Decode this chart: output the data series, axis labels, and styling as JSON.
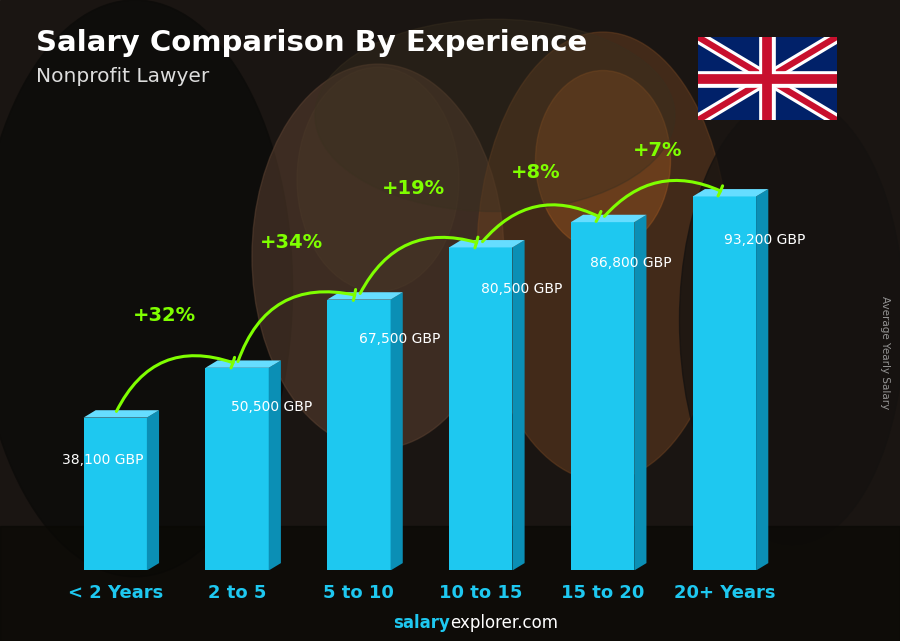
{
  "title": "Salary Comparison By Experience",
  "subtitle": "Nonprofit Lawyer",
  "categories": [
    "< 2 Years",
    "2 to 5",
    "5 to 10",
    "10 to 15",
    "15 to 20",
    "20+ Years"
  ],
  "values": [
    38100,
    50500,
    67500,
    80500,
    86800,
    93200
  ],
  "labels": [
    "38,100 GBP",
    "50,500 GBP",
    "67,500 GBP",
    "80,500 GBP",
    "86,800 GBP",
    "93,200 GBP"
  ],
  "pct_changes": [
    null,
    "+32%",
    "+34%",
    "+19%",
    "+8%",
    "+7%"
  ],
  "bar_color_face": "#1EC8F0",
  "bar_color_top": "#66DDFF",
  "bar_color_side": "#0B8FB5",
  "bg_color": "#2a2520",
  "title_color": "#FFFFFF",
  "subtitle_color": "#CCCCCC",
  "label_color": "#FFFFFF",
  "pct_color": "#ADFF2F",
  "xtick_color": "#1EC8F0",
  "footer_salary_color": "#1EC8F0",
  "footer_rest_color": "#FFFFFF",
  "side_label": "Average Yearly Salary",
  "side_label_color": "#AAAAAA",
  "footer_text_bold": "salary",
  "footer_text_rest": "explorer.com",
  "ylim_max": 115000,
  "bar_width": 0.52,
  "arrow_color": "#7FFF00",
  "arrow_lw": 2.2,
  "pct_fontsize": 14,
  "label_fontsize": 10,
  "xtick_fontsize": 13
}
